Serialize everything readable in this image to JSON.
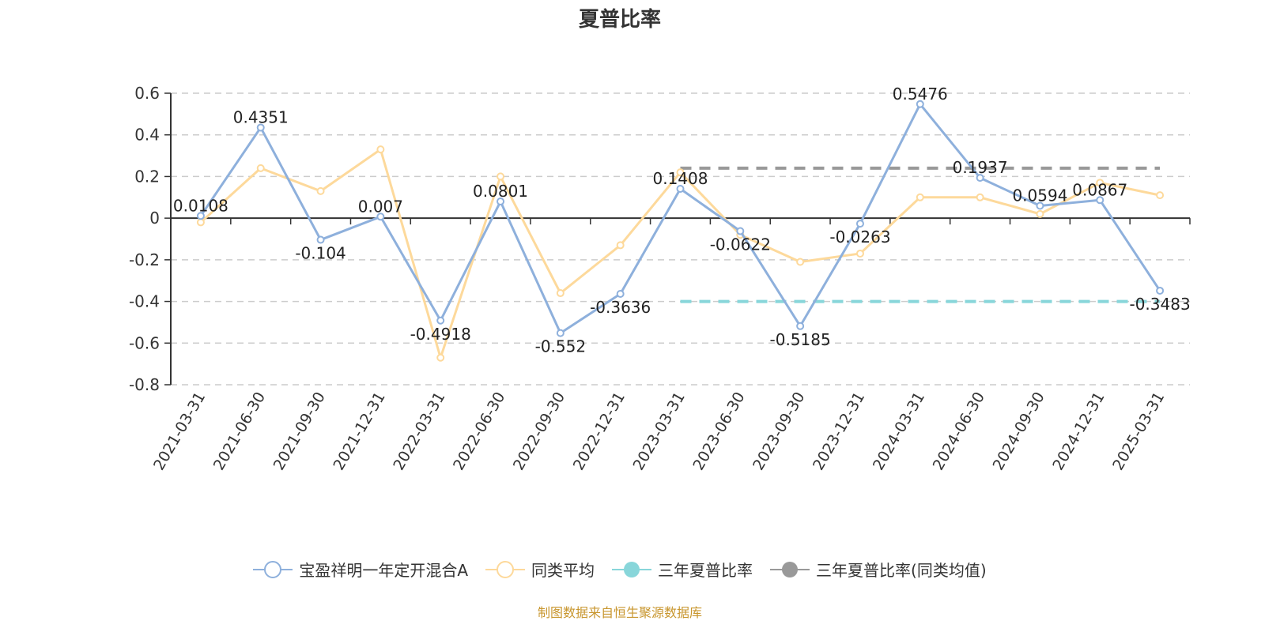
{
  "title": "夏普比率",
  "footer": "制图数据来自恒生聚源数据库",
  "legend": [
    {
      "label": "宝盈祥明一年定开混合A",
      "color": "#8eb0dc",
      "marker": "hollow-circle"
    },
    {
      "label": "同类平均",
      "color": "#fdd99b",
      "marker": "hollow-circle"
    },
    {
      "label": "三年夏普比率",
      "color": "#88d6da",
      "marker": "filled-circle"
    },
    {
      "label": "三年夏普比率(同类均值)",
      "color": "#999999",
      "marker": "filled-circle"
    }
  ],
  "chart_data": {
    "type": "line",
    "title": "夏普比率",
    "xlabel": "",
    "ylabel": "",
    "ylim": [
      -0.8,
      0.6
    ],
    "yticks": [
      0.6,
      0.4,
      0.2,
      0,
      -0.2,
      -0.4,
      -0.6,
      -0.8
    ],
    "ytick_labels": [
      "0.6",
      "0.4",
      "0.2",
      "0",
      "-0.2",
      "-0.4",
      "-0.6",
      "-0.8"
    ],
    "grid": "horizontal-dashed",
    "legend_position": "bottom",
    "categories": [
      "2021-03-31",
      "2021-06-30",
      "2021-09-30",
      "2021-12-31",
      "2022-03-31",
      "2022-06-30",
      "2022-09-30",
      "2022-12-31",
      "2023-03-31",
      "2023-06-30",
      "2023-09-30",
      "2023-12-31",
      "2024-03-31",
      "2024-06-30",
      "2024-09-30",
      "2024-12-31",
      "2025-03-31"
    ],
    "series": [
      {
        "name": "宝盈祥明一年定开混合A",
        "color": "#8eb0dc",
        "values": [
          0.0108,
          0.4351,
          -0.104,
          0.007,
          -0.4918,
          0.0801,
          -0.552,
          -0.3636,
          0.1408,
          -0.0622,
          -0.5185,
          -0.0263,
          0.5476,
          0.1937,
          0.0594,
          0.0867,
          -0.3483
        ],
        "labels": [
          "0.0108",
          "0.4351",
          "-0.104",
          "0.007",
          "-0.4918",
          "0.0801",
          "-0.552",
          "-0.3636",
          "0.1408",
          "-0.0622",
          "-0.5185",
          "-0.0263",
          "0.5476",
          "0.1937",
          "0.0594",
          "0.0867",
          "-0.3483"
        ]
      },
      {
        "name": "同类平均",
        "color": "#fdd99b",
        "values": [
          -0.02,
          0.24,
          0.13,
          0.33,
          -0.67,
          0.2,
          -0.36,
          -0.13,
          0.22,
          -0.08,
          -0.21,
          -0.17,
          0.1,
          0.1,
          0.02,
          0.17,
          0.11
        ]
      },
      {
        "name": "三年夏普比率",
        "color": "#88d6da",
        "style": "dashed",
        "start": "2023-03-31",
        "end": "2025-03-31",
        "value": -0.4
      },
      {
        "name": "三年夏普比率(同类均值)",
        "color": "#999999",
        "style": "dashed",
        "start": "2023-03-31",
        "end": "2025-03-31",
        "value": 0.24
      }
    ]
  }
}
